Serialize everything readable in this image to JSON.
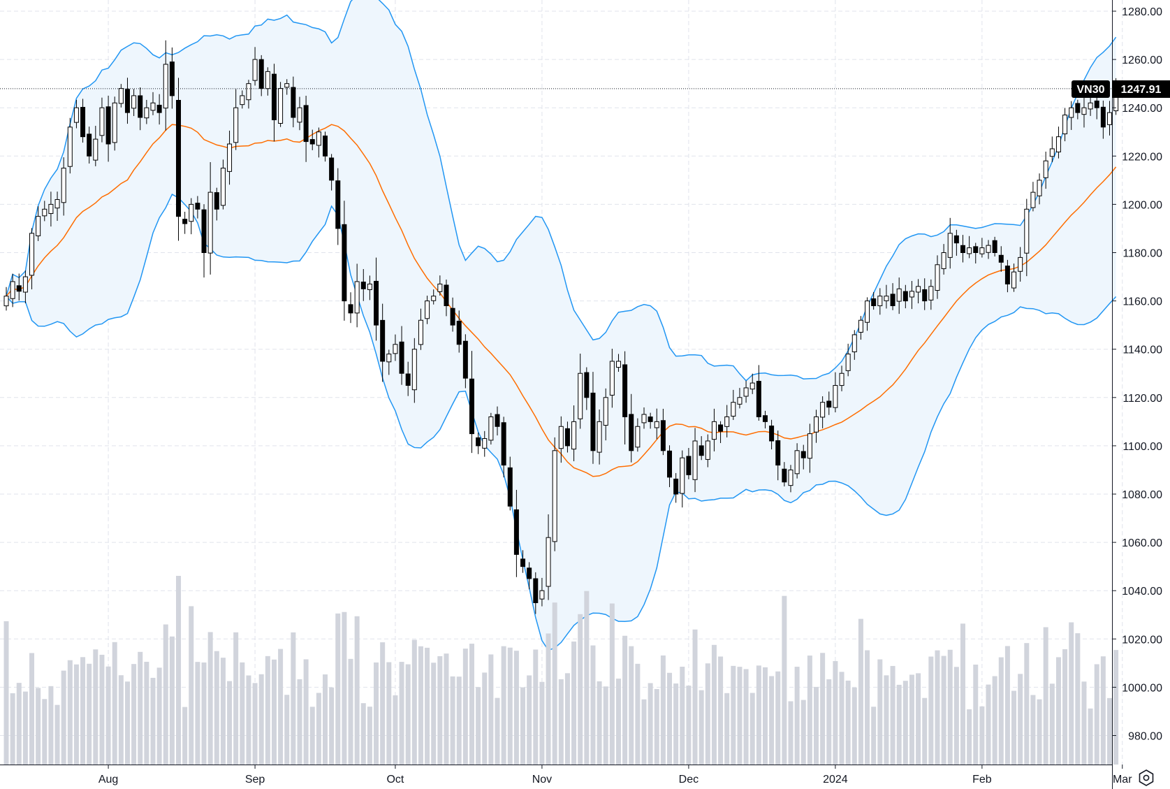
{
  "chart_data": {
    "type": "candlestick",
    "symbol": "VN30",
    "last_price": 1247.91,
    "last_price_label": "1247.91",
    "y_axis": {
      "min": 965,
      "max": 1285,
      "ticks": [
        980,
        1000,
        1020,
        1040,
        1060,
        1080,
        1100,
        1120,
        1140,
        1160,
        1180,
        1200,
        1220,
        1240,
        1260,
        1280
      ],
      "tick_labels": [
        "980.00",
        "1000.00",
        "1020.00",
        "1040.00",
        "1060.00",
        "1080.00",
        "1100.00",
        "1120.00",
        "1140.00",
        "1160.00",
        "1180.00",
        "1200.00",
        "1220.00",
        "1240.00",
        "1260.00",
        "1280.00"
      ]
    },
    "x_axis": {
      "labels": [
        {
          "text": "Aug",
          "index": 16
        },
        {
          "text": "Sep",
          "index": 39
        },
        {
          "text": "Oct",
          "index": 61
        },
        {
          "text": "Nov",
          "index": 84
        },
        {
          "text": "Dec",
          "index": 107
        },
        {
          "text": "2024",
          "index": 130
        },
        {
          "text": "Feb",
          "index": 153
        },
        {
          "text": "Mar",
          "index": 175
        }
      ]
    },
    "grid": true,
    "indicators": [
      "Bollinger Bands (20, 2)",
      "Volume"
    ],
    "colors": {
      "up_body": "#ffffff",
      "down_body": "#000000",
      "candle_outline": "#000000",
      "upper_band": "#2196f3",
      "lower_band": "#2196f3",
      "middle_band": "#ff6d00",
      "band_fill": "#eef6fd",
      "volume": "#d1d4dc",
      "grid": "#e0e3eb",
      "badge": "#000000"
    },
    "closes": [
      1162,
      1168,
      1164,
      1170,
      1188,
      1195,
      1198,
      1200,
      1202,
      1215,
      1232,
      1240,
      1228,
      1220,
      1227,
      1240,
      1225,
      1242,
      1248,
      1238,
      1245,
      1236,
      1240,
      1242,
      1238,
      1258,
      1245,
      1195,
      1192,
      1200,
      1198,
      1180,
      1205,
      1198,
      1215,
      1225,
      1240,
      1245,
      1250,
      1260,
      1248,
      1255,
      1235,
      1248,
      1250,
      1236,
      1240,
      1226,
      1225,
      1230,
      1220,
      1210,
      1190,
      1160,
      1155,
      1168,
      1165,
      1167,
      1150,
      1135,
      1138,
      1142,
      1130,
      1125,
      1140,
      1152,
      1160,
      1162,
      1167,
      1158,
      1150,
      1142,
      1128,
      1105,
      1100,
      1103,
      1112,
      1108,
      1092,
      1075,
      1055,
      1050,
      1045,
      1035,
      1040,
      1062,
      1098,
      1108,
      1100,
      1110,
      1130,
      1120,
      1098,
      1110,
      1120,
      1135,
      1135,
      1112,
      1098,
      1108,
      1113,
      1110,
      1110,
      1098,
      1087,
      1080,
      1095,
      1088,
      1102,
      1096,
      1102,
      1110,
      1106,
      1112,
      1118,
      1120,
      1124,
      1126,
      1112,
      1110,
      1102,
      1092,
      1085,
      1090,
      1098,
      1095,
      1105,
      1112,
      1118,
      1116,
      1125,
      1130,
      1138,
      1146,
      1152,
      1160,
      1158,
      1162,
      1162,
      1158,
      1165,
      1160,
      1164,
      1166,
      1160,
      1166,
      1175,
      1180,
      1188,
      1184,
      1180,
      1182,
      1180,
      1182,
      1183,
      1180,
      1176,
      1167,
      1172,
      1178,
      1198,
      1205,
      1210,
      1218,
      1223,
      1228,
      1237,
      1240,
      1238,
      1240,
      1242,
      1240,
      1232,
      1238,
      1248
    ]
  },
  "ui": {
    "settings_icon": "gear-icon"
  }
}
